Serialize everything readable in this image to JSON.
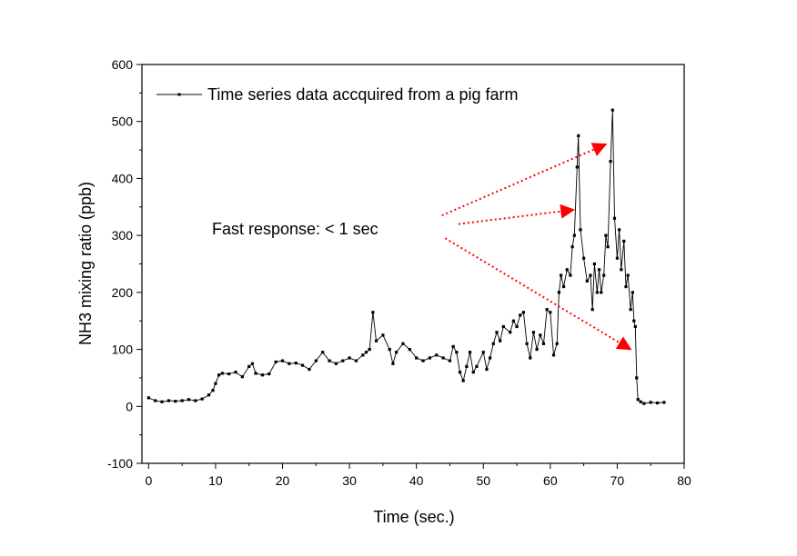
{
  "chart_data": {
    "type": "line",
    "xlabel": "Time (sec.)",
    "ylabel": "NH3 mixing ratio (ppb)",
    "xlim": [
      -1,
      80
    ],
    "ylim": [
      -100,
      600
    ],
    "x_ticks": [
      0,
      10,
      20,
      30,
      40,
      50,
      60,
      70,
      80
    ],
    "y_ticks": [
      -100,
      0,
      100,
      200,
      300,
      400,
      500,
      600
    ],
    "x_tick_labels": [
      "0",
      "10",
      "20",
      "30",
      "40",
      "50",
      "60",
      "70",
      "80"
    ],
    "y_tick_labels": [
      "-100",
      "0",
      "100",
      "200",
      "300",
      "400",
      "500",
      "600"
    ],
    "grid": false,
    "legend_position": "top-left",
    "series": [
      {
        "name": "Time series data accquired from a pig farm",
        "color": "#000000",
        "marker": "square",
        "points": [
          [
            0.0,
            15
          ],
          [
            1.0,
            10
          ],
          [
            2.0,
            8
          ],
          [
            3.0,
            10
          ],
          [
            4.0,
            9
          ],
          [
            5.0,
            10
          ],
          [
            6.0,
            12
          ],
          [
            7.0,
            10
          ],
          [
            8.0,
            13
          ],
          [
            9.0,
            20
          ],
          [
            9.6,
            28
          ],
          [
            10.0,
            40
          ],
          [
            10.5,
            55
          ],
          [
            11.0,
            58
          ],
          [
            12.0,
            57
          ],
          [
            13.0,
            60
          ],
          [
            14.0,
            52
          ],
          [
            15.0,
            70
          ],
          [
            15.5,
            75
          ],
          [
            16.0,
            58
          ],
          [
            17.0,
            55
          ],
          [
            18.0,
            57
          ],
          [
            19.0,
            78
          ],
          [
            20.0,
            80
          ],
          [
            21.0,
            75
          ],
          [
            22.0,
            76
          ],
          [
            23.0,
            72
          ],
          [
            24.0,
            65
          ],
          [
            25.0,
            80
          ],
          [
            26.0,
            95
          ],
          [
            27.0,
            80
          ],
          [
            28.0,
            75
          ],
          [
            29.0,
            80
          ],
          [
            30.0,
            85
          ],
          [
            31.0,
            80
          ],
          [
            32.0,
            90
          ],
          [
            32.5,
            95
          ],
          [
            33.0,
            100
          ],
          [
            33.5,
            165
          ],
          [
            34.0,
            115
          ],
          [
            35.0,
            125
          ],
          [
            36.0,
            100
          ],
          [
            36.5,
            75
          ],
          [
            37.0,
            95
          ],
          [
            38.0,
            110
          ],
          [
            39.0,
            100
          ],
          [
            40.0,
            85
          ],
          [
            41.0,
            80
          ],
          [
            42.0,
            85
          ],
          [
            43.0,
            90
          ],
          [
            44.0,
            85
          ],
          [
            45.0,
            80
          ],
          [
            45.5,
            105
          ],
          [
            46.0,
            95
          ],
          [
            46.5,
            60
          ],
          [
            47.0,
            45
          ],
          [
            47.5,
            70
          ],
          [
            48.0,
            95
          ],
          [
            48.5,
            60
          ],
          [
            49.0,
            70
          ],
          [
            50.0,
            95
          ],
          [
            50.5,
            65
          ],
          [
            51.0,
            85
          ],
          [
            51.5,
            110
          ],
          [
            52.0,
            130
          ],
          [
            52.5,
            115
          ],
          [
            53.0,
            140
          ],
          [
            54.0,
            130
          ],
          [
            54.5,
            150
          ],
          [
            55.0,
            140
          ],
          [
            55.5,
            160
          ],
          [
            56.0,
            165
          ],
          [
            56.5,
            110
          ],
          [
            57.0,
            85
          ],
          [
            57.5,
            130
          ],
          [
            58.0,
            100
          ],
          [
            58.5,
            125
          ],
          [
            59.0,
            110
          ],
          [
            59.5,
            170
          ],
          [
            60.0,
            165
          ],
          [
            60.5,
            90
          ],
          [
            61.0,
            110
          ],
          [
            61.3,
            200
          ],
          [
            61.6,
            230
          ],
          [
            62.0,
            210
          ],
          [
            62.5,
            240
          ],
          [
            63.0,
            230
          ],
          [
            63.3,
            280
          ],
          [
            63.6,
            300
          ],
          [
            64.0,
            420
          ],
          [
            64.2,
            475
          ],
          [
            64.5,
            310
          ],
          [
            65.0,
            260
          ],
          [
            65.5,
            220
          ],
          [
            66.0,
            230
          ],
          [
            66.3,
            170
          ],
          [
            66.6,
            250
          ],
          [
            67.0,
            200
          ],
          [
            67.3,
            240
          ],
          [
            67.6,
            200
          ],
          [
            68.0,
            230
          ],
          [
            68.3,
            300
          ],
          [
            68.6,
            280
          ],
          [
            69.0,
            430
          ],
          [
            69.3,
            520
          ],
          [
            69.6,
            330
          ],
          [
            70.0,
            260
          ],
          [
            70.3,
            310
          ],
          [
            70.6,
            240
          ],
          [
            71.0,
            290
          ],
          [
            71.3,
            210
          ],
          [
            71.6,
            230
          ],
          [
            72.0,
            170
          ],
          [
            72.3,
            200
          ],
          [
            72.5,
            150
          ],
          [
            72.7,
            140
          ],
          [
            72.9,
            50
          ],
          [
            73.1,
            12
          ],
          [
            73.5,
            8
          ],
          [
            74.0,
            5
          ],
          [
            75.0,
            7
          ],
          [
            76.0,
            6
          ],
          [
            77.0,
            7
          ]
        ]
      }
    ],
    "annotations": [
      {
        "text": "Fast response: < 1 sec",
        "arrow_color": "#ff0000",
        "arrows": [
          {
            "from": [
              43.8,
              335
            ],
            "to": [
              68.3,
              460
            ]
          },
          {
            "from": [
              46.3,
              320
            ],
            "to": [
              63.5,
              345
            ]
          },
          {
            "from": [
              44.3,
              295
            ],
            "to": [
              72.0,
              100
            ]
          }
        ]
      }
    ]
  }
}
